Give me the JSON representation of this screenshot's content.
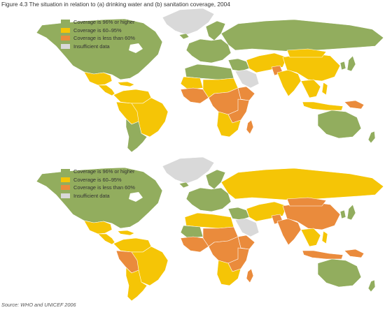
{
  "caption": "Figure 4.3 The situation in relation to (a) drinking water and (b) sanitation coverage, 2004",
  "source": "Source: WHO and UNICEF 2006",
  "colors": {
    "high": "#92ad5e",
    "mid": "#f5c506",
    "low": "#ea8b3c",
    "none": "#d9d9d9",
    "border": "#ffffff",
    "lake": "#ffffff"
  },
  "legend": [
    {
      "key": "high",
      "label": "Coverage is 96% or higher"
    },
    {
      "key": "mid",
      "label": "Coverage is 60–95%"
    },
    {
      "key": "low",
      "label": "Coverage is less than 60%"
    },
    {
      "key": "none",
      "label": "Insufficient data"
    }
  ],
  "panels": [
    {
      "letter": "a",
      "topic": "drinking water",
      "regions": {
        "greenland": "none",
        "north_america": "high",
        "mexico": "mid",
        "central_america": "mid",
        "caribbean": "mid",
        "south_america_north": "mid",
        "brazil": "mid",
        "peru_bolivia": "mid",
        "southern_cone": "high",
        "iceland_scandinavia": "high",
        "europe": "high",
        "russia": "high",
        "north_africa": "high",
        "sahara_west": "mid",
        "west_africa": "low",
        "sahel": "mid",
        "central_africa": "low",
        "horn_of_africa": "low",
        "east_africa": "low",
        "southern_africa": "mid",
        "madagascar": "low",
        "middle_east": "high",
        "arabia": "none",
        "iran_central_asia": "mid",
        "afghanistan": "low",
        "south_asia": "mid",
        "china": "mid",
        "mongolia": "mid",
        "korea_japan": "high",
        "southeast_asia": "mid",
        "indonesia": "mid",
        "new_guinea": "low",
        "australia": "high",
        "new_zealand": "high"
      }
    },
    {
      "letter": "b",
      "topic": "sanitation",
      "regions": {
        "greenland": "none",
        "north_america": "high",
        "mexico": "mid",
        "central_america": "mid",
        "caribbean": "mid",
        "south_america_north": "mid",
        "brazil": "mid",
        "peru_bolivia": "low",
        "southern_cone": "mid",
        "iceland_scandinavia": "high",
        "europe": "high",
        "russia": "mid",
        "north_africa": "mid",
        "sahara_west": "high",
        "west_africa": "low",
        "sahel": "low",
        "central_africa": "low",
        "horn_of_africa": "low",
        "east_africa": "low",
        "southern_africa": "mid",
        "madagascar": "low",
        "middle_east": "high",
        "arabia": "none",
        "iran_central_asia": "mid",
        "afghanistan": "low",
        "south_asia": "low",
        "china": "low",
        "mongolia": "low",
        "korea_japan": "high",
        "southeast_asia": "mid",
        "indonesia": "low",
        "new_guinea": "low",
        "australia": "high",
        "new_zealand": "high"
      }
    }
  ]
}
